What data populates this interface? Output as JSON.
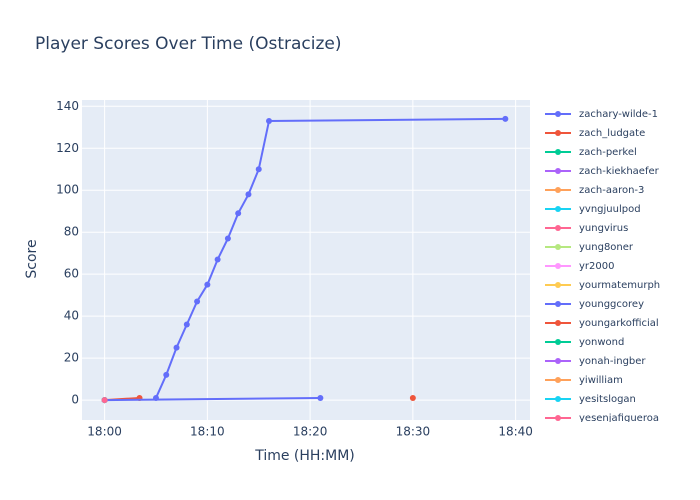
{
  "chart_data": {
    "type": "line",
    "title": "Player Scores Over Time (Ostracize)",
    "x_label": "Time (HH:MM)",
    "y_label": "Score",
    "xlim": [
      "17:57.8",
      "18:41.4"
    ],
    "xticks": [
      "18:00",
      "18:10",
      "18:20",
      "18:30",
      "18:40"
    ],
    "ylim": [
      -9.5,
      143
    ],
    "yticks": [
      0,
      20,
      40,
      60,
      80,
      100,
      120,
      140
    ],
    "grid": true,
    "series": [
      {
        "name": "zachary-wilde-1",
        "color": "#636efa",
        "x": [
          "18:05",
          "18:06",
          "18:07",
          "18:08",
          "18:09",
          "18:10",
          "18:11",
          "18:12",
          "18:13",
          "18:14",
          "18:15",
          "18:16",
          "18:39"
        ],
        "values": [
          1,
          12,
          25,
          36,
          47,
          55,
          67,
          77,
          89,
          98,
          110,
          133,
          134
        ]
      },
      {
        "name": "zach_ludgate",
        "color": "#EF553B",
        "x": [
          "18:00",
          "18:03.4"
        ],
        "values": [
          0,
          1
        ]
      },
      {
        "name": "zach-perkel",
        "color": "#00cc96",
        "x": [
          "18:00"
        ],
        "values": [
          0
        ]
      },
      {
        "name": "zach-kiekhaefer",
        "color": "#ab63fa",
        "x": [
          "18:00"
        ],
        "values": [
          0
        ]
      },
      {
        "name": "zach-aaron-3",
        "color": "#FFA15A",
        "x": [
          "18:00"
        ],
        "values": [
          0
        ]
      },
      {
        "name": "yvngjuulpod",
        "color": "#19d3f3",
        "x": [
          "18:00"
        ],
        "values": [
          0
        ]
      },
      {
        "name": "yungvirus",
        "color": "#FF6692",
        "x": [
          "18:00"
        ],
        "values": [
          0
        ]
      },
      {
        "name": "yung8oner",
        "color": "#B6E880",
        "x": [
          "18:00"
        ],
        "values": [
          0
        ]
      },
      {
        "name": "yr2000",
        "color": "#FF97FF",
        "x": [
          "18:00"
        ],
        "values": [
          0
        ]
      },
      {
        "name": "yourmatemurph",
        "color": "#FECB52",
        "x": [
          "18:00"
        ],
        "values": [
          0
        ]
      },
      {
        "name": "younggcorey",
        "color": "#636efa",
        "x": [
          "18:00",
          "18:21"
        ],
        "values": [
          0,
          1
        ]
      },
      {
        "name": "youngarkofficial",
        "color": "#EF553B",
        "x": [
          "18:30"
        ],
        "values": [
          1
        ]
      },
      {
        "name": "yonwond",
        "color": "#00cc96",
        "x": [
          "18:00"
        ],
        "values": [
          0
        ]
      },
      {
        "name": "yonah-ingber",
        "color": "#ab63fa",
        "x": [
          "18:00"
        ],
        "values": [
          0
        ]
      },
      {
        "name": "yiwilliam",
        "color": "#FFA15A",
        "x": [
          "18:00"
        ],
        "values": [
          0
        ]
      },
      {
        "name": "yesitslogan",
        "color": "#19d3f3",
        "x": [
          "18:00"
        ],
        "values": [
          0
        ]
      },
      {
        "name": "yesenjafigueroa",
        "color": "#FF6692",
        "x": [
          "18:00"
        ],
        "values": [
          0
        ]
      }
    ]
  }
}
